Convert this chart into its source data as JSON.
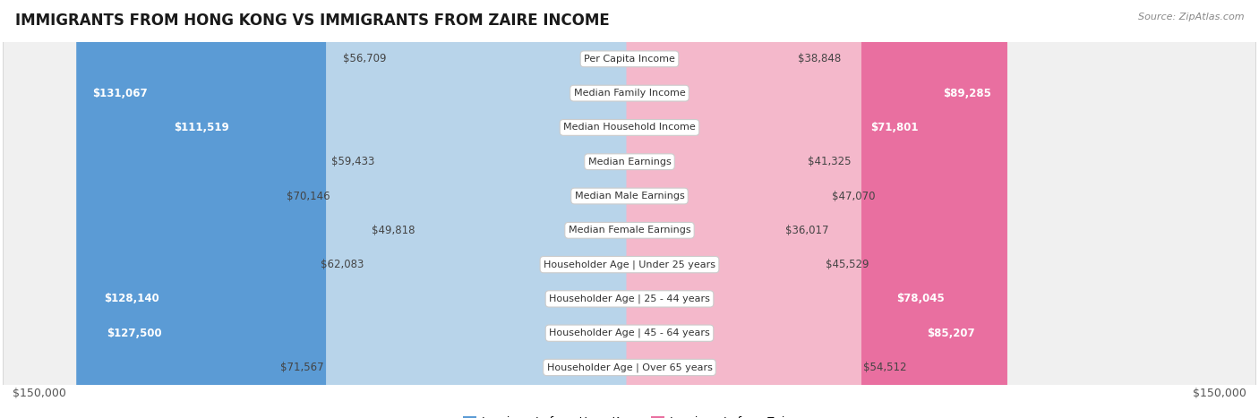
{
  "title": "IMMIGRANTS FROM HONG KONG VS IMMIGRANTS FROM ZAIRE INCOME",
  "source": "Source: ZipAtlas.com",
  "categories": [
    "Per Capita Income",
    "Median Family Income",
    "Median Household Income",
    "Median Earnings",
    "Median Male Earnings",
    "Median Female Earnings",
    "Householder Age | Under 25 years",
    "Householder Age | 25 - 44 years",
    "Householder Age | 45 - 64 years",
    "Householder Age | Over 65 years"
  ],
  "hk_values": [
    56709,
    131067,
    111519,
    59433,
    70146,
    49818,
    62083,
    128140,
    127500,
    71567
  ],
  "zaire_values": [
    38848,
    89285,
    71801,
    41325,
    47070,
    36017,
    45529,
    78045,
    85207,
    54512
  ],
  "hk_labels": [
    "$56,709",
    "$131,067",
    "$111,519",
    "$59,433",
    "$70,146",
    "$49,818",
    "$62,083",
    "$128,140",
    "$127,500",
    "$71,567"
  ],
  "zaire_labels": [
    "$38,848",
    "$89,285",
    "$71,801",
    "$41,325",
    "$47,070",
    "$36,017",
    "$45,529",
    "$78,045",
    "$85,207",
    "$54,512"
  ],
  "max_value": 150000,
  "hk_color_light": "#b8d4ea",
  "hk_color_dark": "#5b9bd5",
  "zaire_color_light": "#f4b8cb",
  "zaire_color_dark": "#e96fa0",
  "hk_dark_threshold": 100000,
  "zaire_dark_threshold": 70000,
  "bg_color": "#ffffff",
  "row_bg": "#f0f0f0",
  "row_border": "#d8d8d8",
  "axis_label_left": "$150,000",
  "axis_label_right": "$150,000",
  "legend_hk": "Immigrants from Hong Kong",
  "legend_zaire": "Immigrants from Zaire"
}
